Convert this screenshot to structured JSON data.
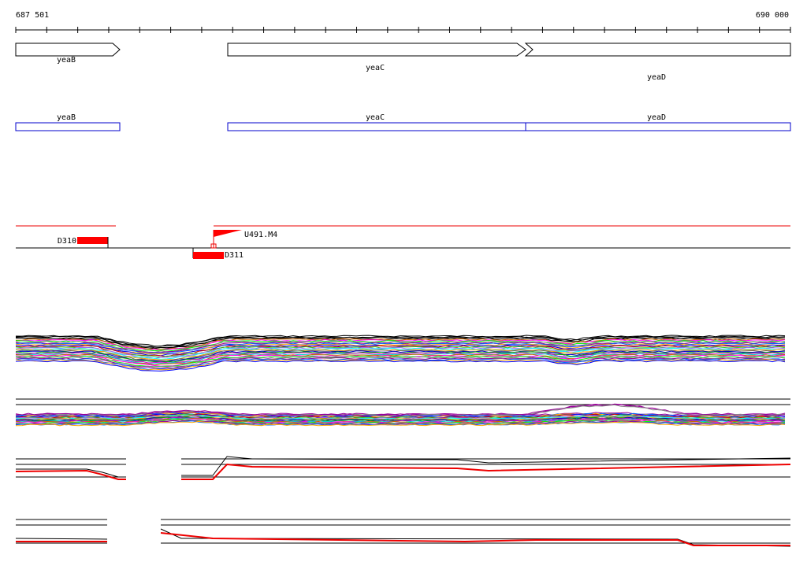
{
  "ruler": {
    "start": "687 501",
    "end": "690 000"
  },
  "genes": [
    {
      "label": "yeaB"
    },
    {
      "label": "yeaC"
    },
    {
      "label": "yeaD"
    }
  ],
  "cds": [
    {
      "label": "yeaB"
    },
    {
      "label": "yeaC"
    },
    {
      "label": "yeaD"
    }
  ],
  "features": [
    {
      "label": "D310"
    },
    {
      "label": "U491.M4"
    },
    {
      "label": "D311"
    }
  ]
}
